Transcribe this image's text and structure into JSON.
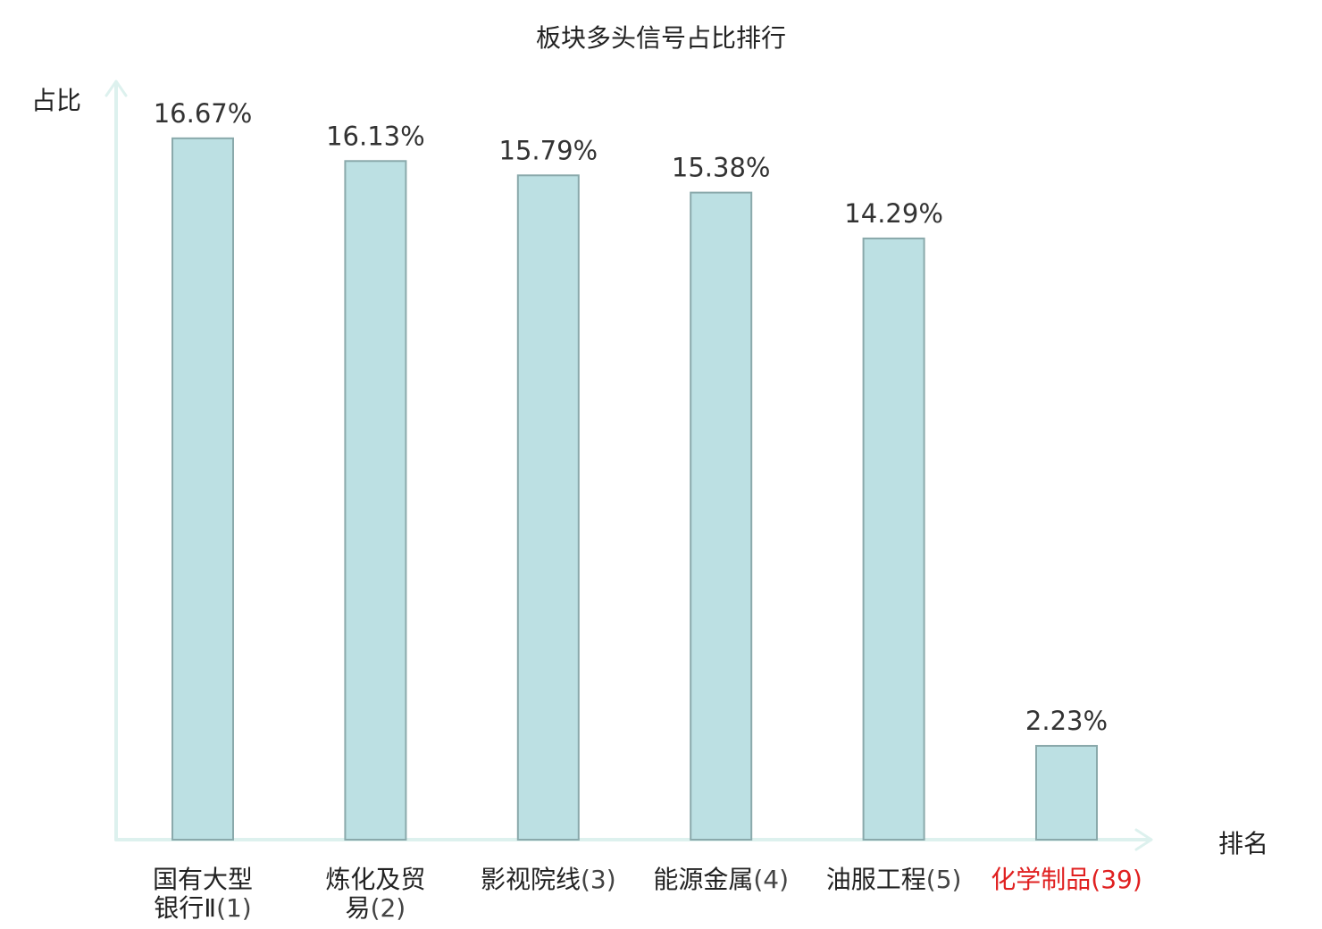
{
  "chart_data": {
    "type": "bar",
    "title": "板块多头信号占比排行",
    "ylabel": "占比",
    "xlabel": "排名",
    "ylim": [
      0,
      17.5
    ],
    "grid": false,
    "legend": "none",
    "unit": "%",
    "categories": [
      {
        "lines": [
          "国有大型",
          "银行Ⅱ"
        ],
        "rank": "(1)",
        "highlight": false
      },
      {
        "lines": [
          "炼化及贸",
          "易"
        ],
        "rank": "(2)",
        "highlight": false
      },
      {
        "lines": [
          "影视院线"
        ],
        "rank": "(3)",
        "highlight": false
      },
      {
        "lines": [
          "能源金属"
        ],
        "rank": "(4)",
        "highlight": false
      },
      {
        "lines": [
          "油服工程"
        ],
        "rank": "(5)",
        "highlight": false
      },
      {
        "lines": [
          "化学制品"
        ],
        "rank": "(39)",
        "highlight": true
      }
    ],
    "values": [
      16.67,
      16.13,
      15.79,
      15.38,
      14.29,
      2.23
    ],
    "value_labels": [
      "16.67%",
      "16.13%",
      "15.79%",
      "15.38%",
      "14.29%",
      "2.23%"
    ]
  },
  "colors": {
    "bar_fill": "#bce0e3",
    "bar_stroke": "#8aa9ab",
    "axis": "#ddf1ee",
    "highlight": "#e02020"
  }
}
